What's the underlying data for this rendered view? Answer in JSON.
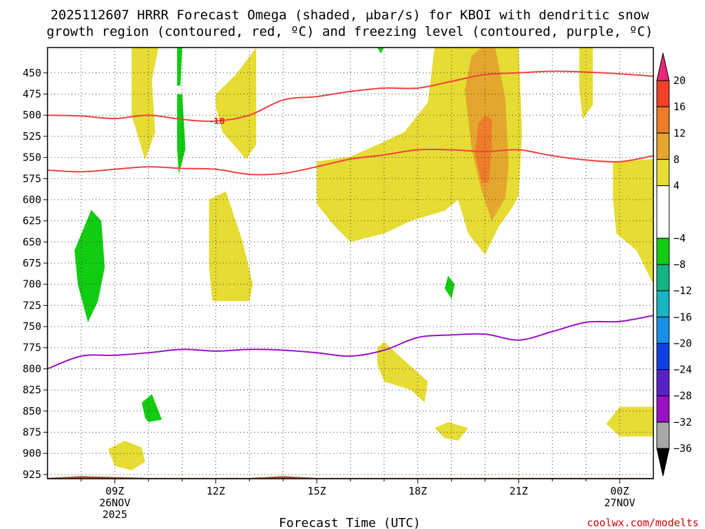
{
  "chart_data": {
    "type": "heatmap",
    "title_line1": "2025112607 HRRR Forecast Omega (shaded, μbar/s) for KBOI with dendritic snow",
    "title_line2": "growth region (contoured, red, ºC) and freezing level (contoured, purple, ºC)",
    "xlabel": "Forecast Time (UTC)",
    "credit": "coolwx.com/modelts",
    "x_range_hours": [
      7,
      25
    ],
    "y_range_hPa": [
      420,
      930
    ],
    "x_ticks": [
      {
        "hour": 9,
        "label": "09Z",
        "label2": "26NOV",
        "label3": "2025"
      },
      {
        "hour": 12,
        "label": "12Z",
        "label2": "",
        "label3": ""
      },
      {
        "hour": 15,
        "label": "15Z",
        "label2": "",
        "label3": ""
      },
      {
        "hour": 18,
        "label": "18Z",
        "label2": "",
        "label3": ""
      },
      {
        "hour": 21,
        "label": "21Z",
        "label2": "",
        "label3": ""
      },
      {
        "hour": 24,
        "label": "00Z",
        "label2": "27NOV",
        "label3": ""
      }
    ],
    "y_ticks": [
      450,
      475,
      500,
      525,
      550,
      575,
      600,
      625,
      650,
      675,
      700,
      725,
      750,
      775,
      800,
      825,
      850,
      875,
      900,
      925
    ],
    "colorbar": {
      "labels": [
        "20",
        "16",
        "12",
        "8",
        "4",
        "-4",
        "-8",
        "-12",
        "-16",
        "-20",
        "-24",
        "-28",
        "-32",
        "-36"
      ],
      "bands": [
        {
          "from": 20,
          "to": 24,
          "color": "#e8287a"
        },
        {
          "from": 16,
          "to": 20,
          "color": "#f04028"
        },
        {
          "from": 12,
          "to": 16,
          "color": "#ee7c28"
        },
        {
          "from": 8,
          "to": 12,
          "color": "#e4a62c"
        },
        {
          "from": 4,
          "to": 8,
          "color": "#e6dc34"
        },
        {
          "from": -4,
          "to": 4,
          "color": "#ffffff"
        },
        {
          "from": -8,
          "to": -4,
          "color": "#12cc12"
        },
        {
          "from": -12,
          "to": -8,
          "color": "#14b484"
        },
        {
          "from": -16,
          "to": -12,
          "color": "#18b4c4"
        },
        {
          "from": -20,
          "to": -16,
          "color": "#1890e8"
        },
        {
          "from": -24,
          "to": -20,
          "color": "#1040e0"
        },
        {
          "from": -28,
          "to": -24,
          "color": "#5a20c8"
        },
        {
          "from": -32,
          "to": -28,
          "color": "#9c10c4"
        },
        {
          "from": -36,
          "to": -32,
          "color": "#a8a8a8"
        }
      ]
    },
    "contour_label": "-18",
    "dgz_upper_minus18C": [
      [
        7.0,
        500
      ],
      [
        8.0,
        501
      ],
      [
        9.0,
        504
      ],
      [
        10.0,
        500
      ],
      [
        11.0,
        505
      ],
      [
        12.0,
        507
      ],
      [
        13.0,
        500
      ],
      [
        14.0,
        482
      ],
      [
        15.0,
        478
      ],
      [
        16.0,
        472
      ],
      [
        17.0,
        468
      ],
      [
        18.0,
        468
      ],
      [
        19.0,
        460
      ],
      [
        20.0,
        452
      ],
      [
        21.0,
        450
      ],
      [
        22.0,
        448
      ],
      [
        23.0,
        449
      ],
      [
        24.0,
        451
      ],
      [
        25.0,
        454
      ]
    ],
    "dgz_lower_minus12C": [
      [
        7.0,
        565
      ],
      [
        8.0,
        567
      ],
      [
        9.0,
        564
      ],
      [
        10.0,
        561
      ],
      [
        11.0,
        563
      ],
      [
        12.0,
        564
      ],
      [
        13.0,
        570
      ],
      [
        14.0,
        569
      ],
      [
        15.0,
        561
      ],
      [
        16.0,
        552
      ],
      [
        17.0,
        547
      ],
      [
        18.0,
        541
      ],
      [
        19.0,
        541
      ],
      [
        20.0,
        543
      ],
      [
        21.0,
        541
      ],
      [
        22.0,
        548
      ],
      [
        23.0,
        553
      ],
      [
        24.0,
        555
      ],
      [
        25.0,
        548
      ]
    ],
    "freezing_level_0C": [
      [
        7.0,
        800
      ],
      [
        8.0,
        785
      ],
      [
        9.0,
        784
      ],
      [
        10.0,
        781
      ],
      [
        11.0,
        777
      ],
      [
        12.0,
        779
      ],
      [
        13.0,
        777
      ],
      [
        14.0,
        778
      ],
      [
        15.0,
        781
      ],
      [
        16.0,
        785
      ],
      [
        17.0,
        778
      ],
      [
        18.0,
        763
      ],
      [
        19.0,
        760
      ],
      [
        20.0,
        759
      ],
      [
        21.0,
        766
      ],
      [
        22.0,
        756
      ],
      [
        23.0,
        745
      ],
      [
        24.0,
        744
      ],
      [
        25.0,
        737
      ]
    ],
    "omega_regions": [
      {
        "value_class": "4 to 8",
        "color": "#e6dc34",
        "polygon": [
          [
            9.5,
            420
          ],
          [
            10.3,
            420
          ],
          [
            10.1,
            458
          ],
          [
            10.2,
            520
          ],
          [
            9.9,
            553
          ],
          [
            9.5,
            500
          ],
          [
            9.5,
            460
          ]
        ]
      },
      {
        "value_class": "4 to 8",
        "color": "#e6dc34",
        "polygon": [
          [
            12.0,
            475
          ],
          [
            12.6,
            452
          ],
          [
            13.2,
            420
          ],
          [
            13.2,
            485
          ],
          [
            13.2,
            535
          ],
          [
            12.9,
            552
          ],
          [
            12.2,
            520
          ],
          [
            12.0,
            490
          ]
        ]
      },
      {
        "value_class": "4 to 8",
        "color": "#e6dc34",
        "polygon": [
          [
            15.0,
            555
          ],
          [
            16.0,
            549
          ],
          [
            16.8,
            535
          ],
          [
            17.6,
            520
          ],
          [
            18.3,
            485
          ],
          [
            18.5,
            420
          ],
          [
            21.0,
            420
          ],
          [
            21.1,
            520
          ],
          [
            21.0,
            595
          ],
          [
            20.8,
            610
          ],
          [
            20.4,
            632
          ],
          [
            20.0,
            665
          ],
          [
            19.5,
            640
          ],
          [
            19.2,
            600
          ],
          [
            18.8,
            613
          ],
          [
            17.8,
            625
          ],
          [
            17.0,
            640
          ],
          [
            16.0,
            650
          ],
          [
            15.5,
            630
          ],
          [
            15.0,
            605
          ]
        ]
      },
      {
        "value_class": "8 to 12",
        "color": "#e4a62c",
        "polygon": [
          [
            19.9,
            420
          ],
          [
            20.3,
            420
          ],
          [
            20.6,
            480
          ],
          [
            20.7,
            560
          ],
          [
            20.6,
            598
          ],
          [
            20.2,
            625
          ],
          [
            19.9,
            590
          ],
          [
            19.6,
            540
          ],
          [
            19.4,
            470
          ],
          [
            19.6,
            430
          ]
        ]
      },
      {
        "value_class": "12 to 16",
        "color": "#ee7c28",
        "polygon": [
          [
            20.0,
            500
          ],
          [
            20.2,
            505
          ],
          [
            20.2,
            540
          ],
          [
            20.1,
            580
          ],
          [
            19.9,
            580
          ],
          [
            19.7,
            545
          ],
          [
            19.8,
            510
          ]
        ]
      },
      {
        "value_class": "4 to 8",
        "color": "#e6dc34",
        "polygon": [
          [
            22.8,
            420
          ],
          [
            23.2,
            420
          ],
          [
            23.2,
            488
          ],
          [
            22.9,
            505
          ],
          [
            22.8,
            470
          ]
        ]
      },
      {
        "value_class": "4 to 8",
        "color": "#e6dc34",
        "polygon": [
          [
            23.8,
            555
          ],
          [
            25.0,
            552
          ],
          [
            25.0,
            700
          ],
          [
            24.5,
            660
          ],
          [
            23.9,
            640
          ],
          [
            23.8,
            600
          ]
        ]
      },
      {
        "value_class": "4 to 8",
        "color": "#e6dc34",
        "polygon": [
          [
            11.8,
            600
          ],
          [
            12.3,
            590
          ],
          [
            12.8,
            650
          ],
          [
            13.1,
            700
          ],
          [
            13.0,
            720
          ],
          [
            11.9,
            720
          ],
          [
            11.8,
            680
          ]
        ]
      },
      {
        "value_class": "4 to 8",
        "color": "#e6dc34",
        "polygon": [
          [
            16.8,
            775
          ],
          [
            17.0,
            768
          ],
          [
            17.6,
            790
          ],
          [
            18.3,
            815
          ],
          [
            18.2,
            840
          ],
          [
            17.8,
            825
          ],
          [
            17.0,
            815
          ],
          [
            16.8,
            795
          ]
        ]
      },
      {
        "value_class": "4 to 8",
        "color": "#e6dc34",
        "polygon": [
          [
            23.6,
            865
          ],
          [
            24.0,
            845
          ],
          [
            25.0,
            845
          ],
          [
            25.0,
            880
          ],
          [
            24.0,
            880
          ]
        ]
      },
      {
        "value_class": "4 to 8",
        "color": "#e6dc34",
        "polygon": [
          [
            8.8,
            895
          ],
          [
            9.3,
            885
          ],
          [
            9.8,
            893
          ],
          [
            9.9,
            910
          ],
          [
            9.5,
            920
          ],
          [
            9.0,
            915
          ]
        ]
      },
      {
        "value_class": "4 to 8",
        "color": "#e6dc34",
        "polygon": [
          [
            18.5,
            870
          ],
          [
            18.9,
            863
          ],
          [
            19.5,
            870
          ],
          [
            19.2,
            885
          ],
          [
            18.8,
            882
          ]
        ]
      },
      {
        "value_class": "-8 to -4",
        "color": "#12cc12",
        "polygon": [
          [
            8.3,
            612
          ],
          [
            8.6,
            625
          ],
          [
            8.7,
            680
          ],
          [
            8.5,
            720
          ],
          [
            8.2,
            745
          ],
          [
            7.9,
            700
          ],
          [
            7.8,
            660
          ]
        ]
      },
      {
        "value_class": "-8 to -4",
        "color": "#12cc12",
        "polygon": [
          [
            10.85,
            420
          ],
          [
            11.0,
            420
          ],
          [
            10.95,
            465
          ],
          [
            10.85,
            465
          ]
        ]
      },
      {
        "value_class": "-8 to -4",
        "color": "#12cc12",
        "polygon": [
          [
            10.85,
            475
          ],
          [
            11.0,
            475
          ],
          [
            11.1,
            540
          ],
          [
            10.9,
            570
          ],
          [
            10.85,
            540
          ]
        ]
      },
      {
        "value_class": "-8 to -4",
        "color": "#12cc12",
        "polygon": [
          [
            16.8,
            420
          ],
          [
            17.0,
            420
          ],
          [
            16.9,
            427
          ]
        ]
      },
      {
        "value_class": "-8 to -4",
        "color": "#12cc12",
        "polygon": [
          [
            18.9,
            690
          ],
          [
            19.1,
            700
          ],
          [
            19.0,
            717
          ],
          [
            18.8,
            705
          ]
        ]
      },
      {
        "value_class": "-8 to -4",
        "color": "#12cc12",
        "polygon": [
          [
            9.8,
            840
          ],
          [
            10.1,
            830
          ],
          [
            10.4,
            860
          ],
          [
            10.0,
            863
          ],
          [
            9.9,
            858
          ]
        ]
      }
    ],
    "terrain_color": "#a0522d"
  }
}
